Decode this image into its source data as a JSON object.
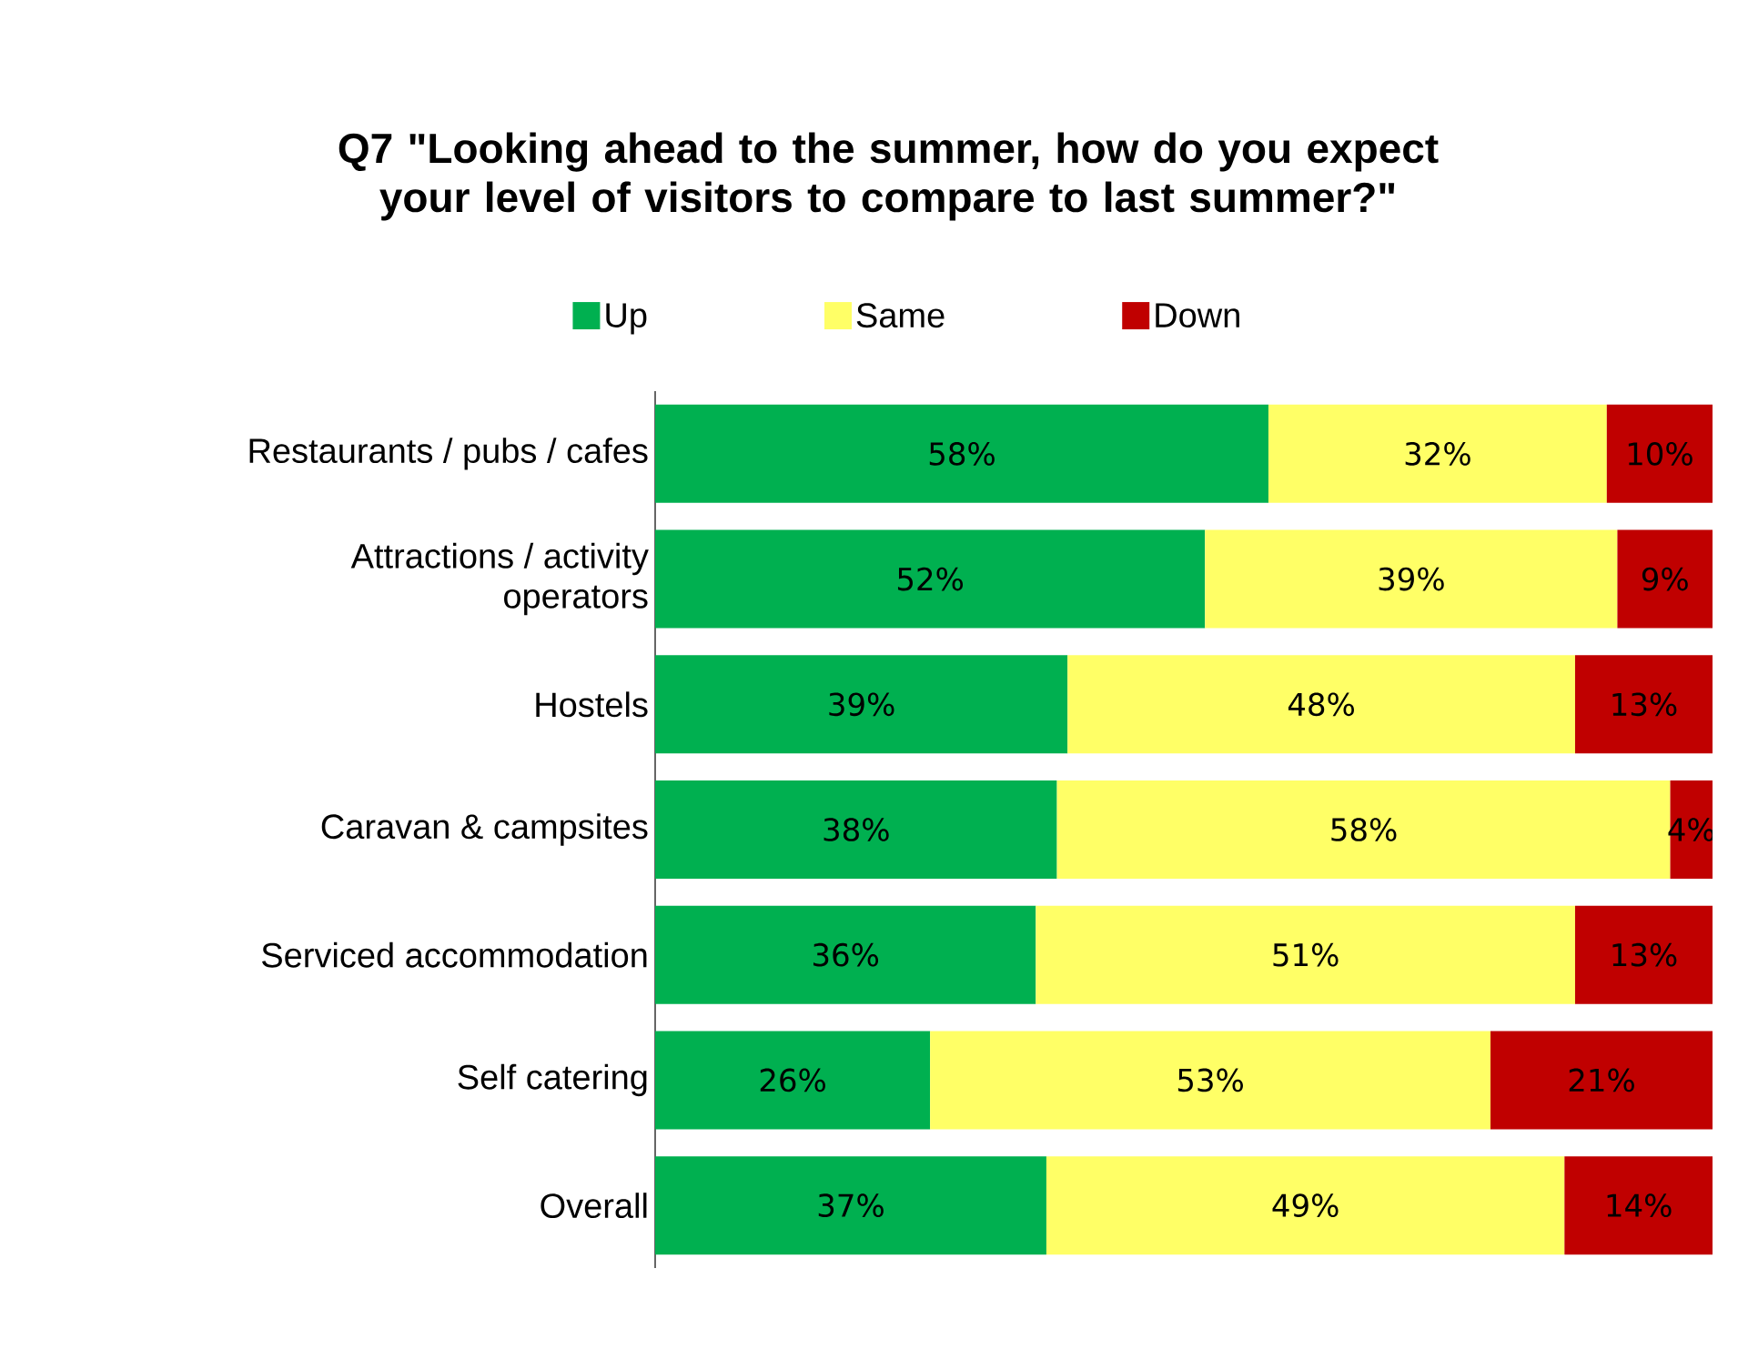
{
  "chart_data": {
    "type": "bar",
    "orientation": "horizontal",
    "stacked": true,
    "title": "Q7 \"Looking ahead to the summer, how do you expect your level of visitors to compare to last summer?\"",
    "categories": [
      "Restaurants / pubs / cafes",
      "Attractions / activity operators",
      "Hostels",
      "Caravan & campsites",
      "Serviced accommodation",
      "Self catering",
      "Overall"
    ],
    "series": [
      {
        "name": "Up",
        "color": "#00b050",
        "values": [
          58,
          52,
          39,
          38,
          36,
          26,
          37
        ],
        "value_labels": [
          "58%",
          "52%",
          "39%",
          "38%",
          "36%",
          "26%",
          "37%"
        ]
      },
      {
        "name": "Same",
        "color": "#ffff66",
        "values": [
          32,
          39,
          48,
          58,
          51,
          53,
          49
        ],
        "value_labels": [
          "32%",
          "39%",
          "48%",
          "58%",
          "51%",
          "53%",
          "49%"
        ]
      },
      {
        "name": "Down",
        "color": "#c00000",
        "values": [
          10,
          9,
          13,
          4,
          13,
          21,
          14
        ],
        "value_labels": [
          "10%",
          "9%",
          "13%",
          "4%",
          "13%",
          "21%",
          "14%"
        ]
      }
    ],
    "xlim": [
      0,
      100
    ],
    "tick_labels": "y",
    "legend": "top"
  }
}
